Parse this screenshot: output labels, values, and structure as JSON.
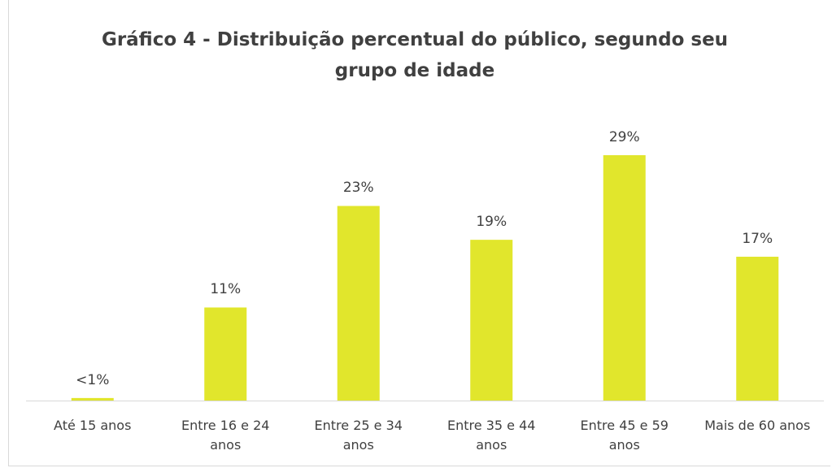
{
  "chart_data": {
    "type": "bar",
    "title": "Gráfico 4 - Distribuição percentual do público, segundo seu grupo de idade",
    "categories": [
      "Até 15 anos",
      "Entre 16 e 24 anos",
      "Entre 25 e 34 anos",
      "Entre 35 e 44 anos",
      "Entre 45 e 59 anos",
      "Mais de 60 anos"
    ],
    "values": [
      0.3,
      11,
      23,
      19,
      29,
      17
    ],
    "value_labels": [
      "<1%",
      "11%",
      "23%",
      "19%",
      "29%",
      "17%"
    ],
    "color": "#e1e62c"
  }
}
